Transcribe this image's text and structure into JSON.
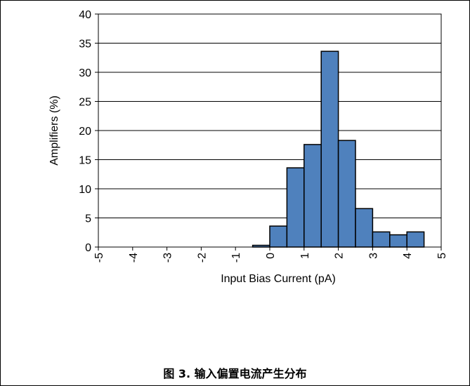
{
  "caption": "图 3. 输入偏置电流产生分布",
  "chart_data": {
    "type": "bar",
    "title": "",
    "xlabel": "Input Bias Current (pA)",
    "ylabel": "Amplifiers (%)",
    "xlim": [
      -5,
      5
    ],
    "ylim": [
      0,
      40
    ],
    "ytick_step": 5,
    "x_ticks": [
      "-5",
      "-4",
      "-3",
      "-2",
      "-1",
      "0",
      "1",
      "2",
      "3",
      "4",
      "5"
    ],
    "y_ticks": [
      "0",
      "5",
      "10",
      "15",
      "20",
      "25",
      "30",
      "35",
      "40"
    ],
    "bin_edges": [
      -5,
      -4.5,
      -4,
      -3.5,
      -3,
      -2.5,
      -2,
      -1.5,
      -1,
      -0.5,
      0,
      0.5,
      1,
      1.5,
      2,
      2.5,
      3,
      3.5,
      4,
      4.5,
      5
    ],
    "values": [
      0,
      0,
      0,
      0,
      0,
      0,
      0,
      0,
      0,
      0.3,
      3.6,
      13.6,
      17.6,
      33.6,
      18.3,
      6.6,
      2.6,
      2.1,
      2.6,
      0
    ],
    "grid": true,
    "bar_color": "#4f81bd",
    "bar_edge_color": "#000000"
  }
}
